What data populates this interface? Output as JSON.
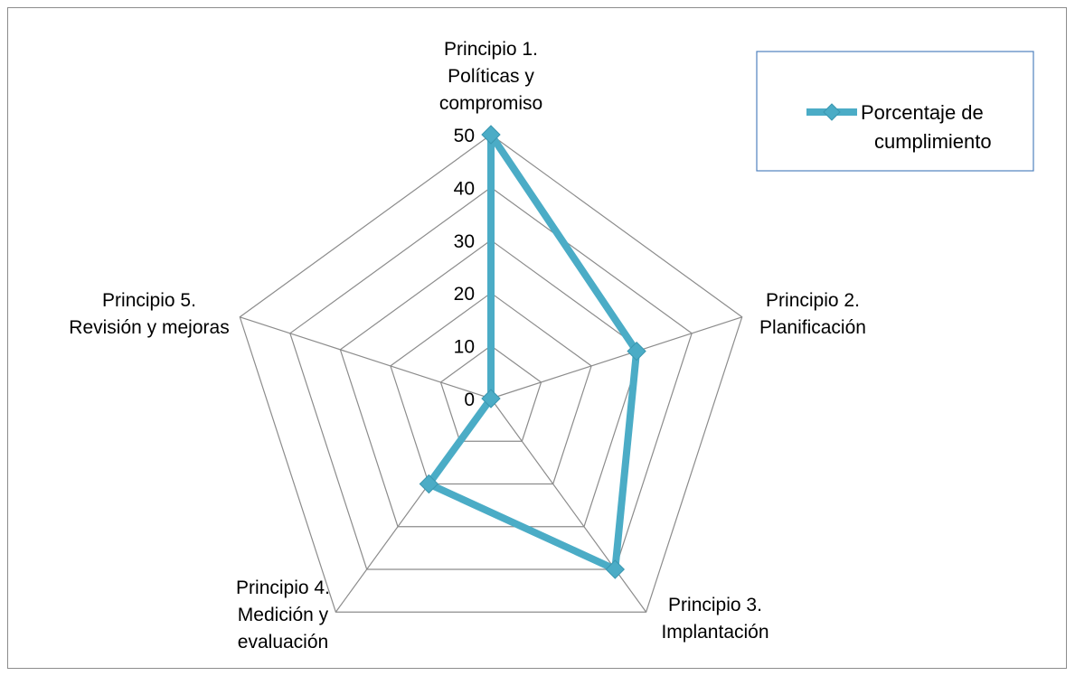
{
  "chart_data": {
    "type": "radar",
    "categories": [
      [
        "Principio 1.",
        "Políticas y",
        "compromiso"
      ],
      [
        "Principio 2.",
        "Planificación"
      ],
      [
        "Principio 3.",
        "Implantación"
      ],
      [
        "Principio 4.",
        "Medición y",
        "evaluación"
      ],
      [
        "Principio 5.",
        "Revisión y mejoras"
      ]
    ],
    "series": [
      {
        "name": [
          "Porcentaje de",
          "cumplimiento"
        ],
        "values": [
          50,
          29,
          40,
          20,
          0
        ],
        "color": "#4bacc6"
      }
    ],
    "rlim": [
      0,
      50
    ],
    "ticks": [
      "0",
      "10",
      "20",
      "30",
      "40",
      "50"
    ],
    "grid": true,
    "legend": "top-right"
  }
}
